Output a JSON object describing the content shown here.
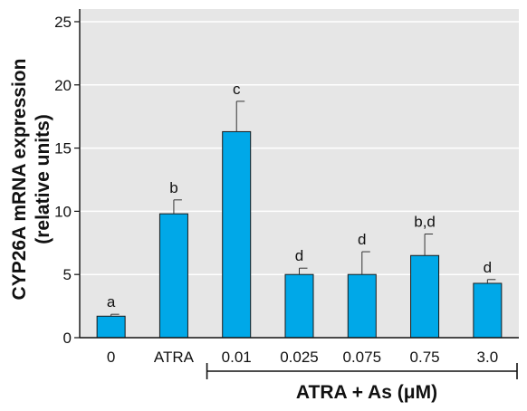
{
  "chart_data": {
    "type": "bar",
    "ylabel_line1": "CYP26A mRNA expression",
    "ylabel_line2": "(relative units)",
    "ylim": [
      0,
      26
    ],
    "yticks": [
      "0",
      "5",
      "10",
      "15",
      "20",
      "25"
    ],
    "ytick_values": [
      0,
      5,
      10,
      15,
      20,
      25
    ],
    "categories": [
      "0",
      "ATRA",
      "0.01",
      "0.025",
      "0.075",
      "0.75",
      "3.0"
    ],
    "values": [
      1.7,
      9.8,
      16.3,
      5.0,
      5.0,
      6.5,
      4.3
    ],
    "errors": [
      0.15,
      1.1,
      2.4,
      0.5,
      1.8,
      1.7,
      0.3
    ],
    "significance": [
      "a",
      "b",
      "c",
      "d",
      "d",
      "b,d",
      "d"
    ],
    "group_label": "ATRA + As (μM)",
    "group_span": [
      "0.01",
      "3.0"
    ],
    "bar_color": "#00a8e8",
    "plot_background": "#e6e6e6",
    "grid": true,
    "legend": "none"
  }
}
